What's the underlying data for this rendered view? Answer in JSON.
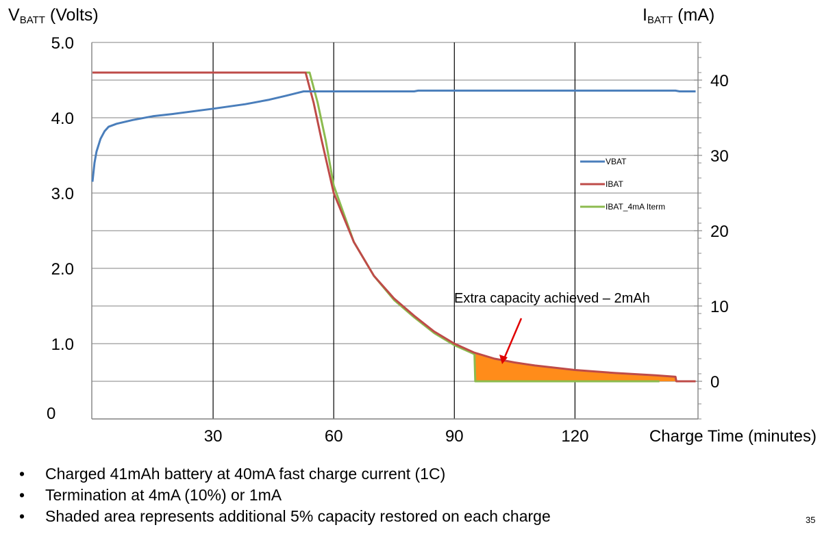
{
  "chart_data": {
    "type": "line",
    "y_left_label": {
      "main": "V",
      "sub": "BATT",
      "unit": " (Volts)"
    },
    "y_right_label": {
      "main": "I",
      "sub": "BATT",
      "unit": " (mA)"
    },
    "xlabel": "Charge Time (minutes)",
    "xlim": [
      0,
      150
    ],
    "ylim_left": [
      0,
      5
    ],
    "ylim_right": [
      -5,
      45
    ],
    "x_ticks": [
      "30",
      "60",
      "90",
      "120"
    ],
    "x_tick_values": [
      30,
      60,
      90,
      120
    ],
    "y_left_ticks": [
      "0",
      "1.0",
      "2.0",
      "3.0",
      "4.0",
      "5.0"
    ],
    "y_left_tick_values": [
      0,
      1,
      2,
      3,
      4,
      5
    ],
    "y_right_ticks": [
      "0",
      "10",
      "20",
      "30",
      "40"
    ],
    "y_right_tick_values": [
      0,
      10,
      20,
      30,
      40
    ],
    "grid": true,
    "legend_position": "right-middle",
    "series": [
      {
        "name": "VBAT",
        "axis": "left",
        "color": "#4a7ebb",
        "points": [
          [
            0,
            3.15
          ],
          [
            0.5,
            3.4
          ],
          [
            1,
            3.55
          ],
          [
            2,
            3.72
          ],
          [
            3,
            3.82
          ],
          [
            4,
            3.88
          ],
          [
            6,
            3.92
          ],
          [
            10,
            3.97
          ],
          [
            15,
            4.02
          ],
          [
            20,
            4.05
          ],
          [
            30,
            4.12
          ],
          [
            38,
            4.18
          ],
          [
            44,
            4.24
          ],
          [
            48,
            4.29
          ],
          [
            51,
            4.33
          ],
          [
            52.5,
            4.35
          ],
          [
            80,
            4.35
          ],
          [
            81,
            4.36
          ],
          [
            145,
            4.36
          ],
          [
            146,
            4.35
          ],
          [
            150,
            4.35
          ]
        ]
      },
      {
        "name": "IBAT",
        "axis": "right",
        "color": "#be4b48",
        "points": [
          [
            0,
            41
          ],
          [
            53,
            41
          ],
          [
            55,
            37
          ],
          [
            57,
            32
          ],
          [
            60,
            25
          ],
          [
            65,
            18.5
          ],
          [
            70,
            14
          ],
          [
            75,
            11
          ],
          [
            80,
            8.7
          ],
          [
            85,
            6.6
          ],
          [
            90,
            5
          ],
          [
            95,
            3.8
          ],
          [
            100,
            3.0
          ],
          [
            105,
            2.5
          ],
          [
            110,
            2.1
          ],
          [
            120,
            1.5
          ],
          [
            130,
            1.1
          ],
          [
            140,
            0.8
          ],
          [
            145,
            0.6
          ],
          [
            145.2,
            0
          ],
          [
            150,
            0
          ]
        ]
      },
      {
        "name": "IBAT_4mA Iterm",
        "axis": "right",
        "color": "#8cbb4f",
        "points": [
          [
            0,
            41
          ],
          [
            54,
            41
          ],
          [
            56,
            37
          ],
          [
            58,
            32
          ],
          [
            60,
            26
          ],
          [
            65,
            18.5
          ],
          [
            70,
            14
          ],
          [
            75,
            10.8
          ],
          [
            80,
            8.5
          ],
          [
            85,
            6.4
          ],
          [
            90,
            4.8
          ],
          [
            95,
            3.6
          ],
          [
            95.2,
            0
          ],
          [
            141,
            0
          ]
        ]
      }
    ],
    "shaded_region": {
      "from_x": 95,
      "to_x": 145,
      "color": "#ff8c1a"
    },
    "annotation": {
      "text": "Extra capacity achieved – 2mAh",
      "arrow_color": "#e00000"
    }
  },
  "bullets": [
    "Charged 41mAh battery at 40mA fast charge current (1C)",
    "Termination at 4mA (10%) or 1mA",
    "Shaded area represents additional 5% capacity restored on each charge"
  ],
  "page_number": "35"
}
